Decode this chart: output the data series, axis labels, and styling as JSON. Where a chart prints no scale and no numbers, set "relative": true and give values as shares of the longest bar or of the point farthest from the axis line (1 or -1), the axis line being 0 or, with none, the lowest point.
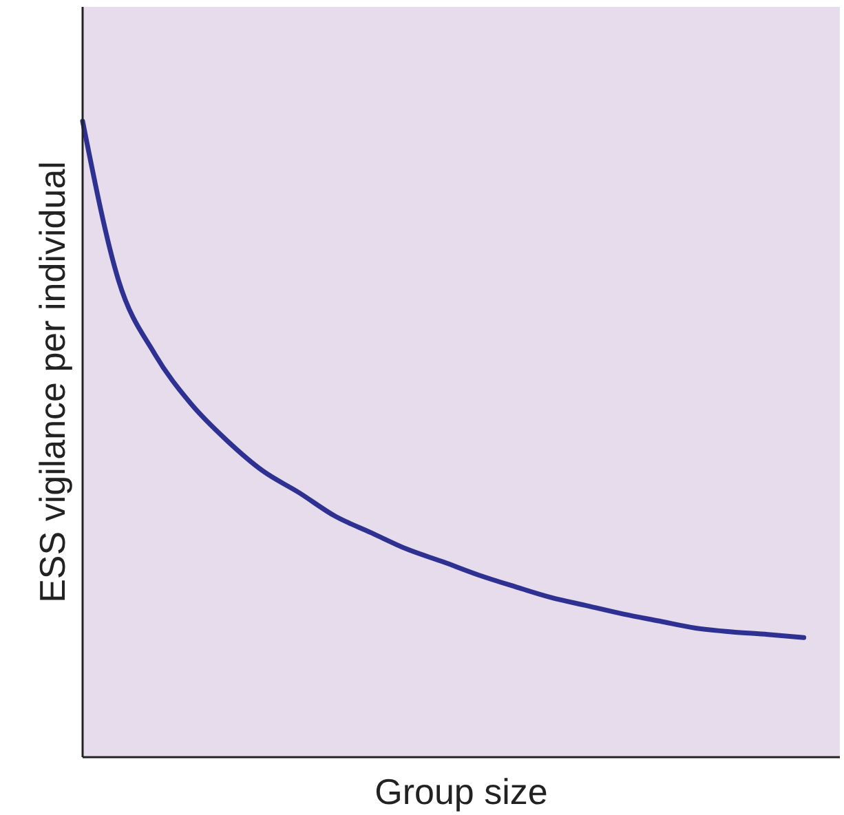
{
  "chart_data": {
    "type": "line",
    "relative": true,
    "xlabel": "Group size",
    "ylabel": "ESS vigilance per individual",
    "categories": [
      null,
      null,
      null,
      null,
      null,
      null,
      null,
      null,
      null,
      null,
      null,
      null,
      null,
      null,
      null,
      null,
      null,
      null,
      null,
      null,
      null,
      null
    ],
    "series": [
      {
        "color": "#2e3192",
        "values": [
          1,
          0.749,
          0.634,
          0.556,
          0.498,
          0.45,
          0.416,
          0.379,
          0.353,
          0.327,
          0.307,
          0.286,
          0.268,
          0.251,
          0.238,
          0.225,
          0.214,
          0.203,
          0.197,
          0.193,
          0.188,
          null
        ]
      }
    ],
    "marker": "none",
    "line_style": "solid"
  }
}
